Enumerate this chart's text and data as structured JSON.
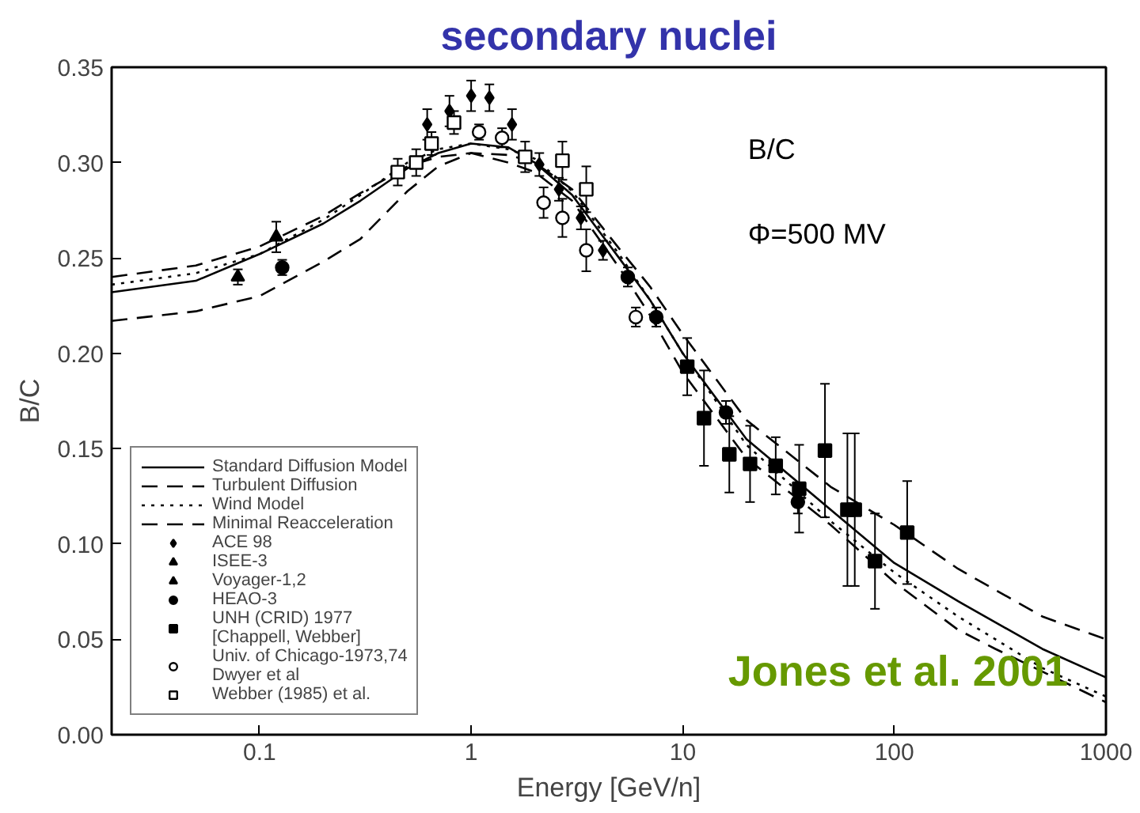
{
  "chart_data": {
    "type": "scatter",
    "title": "secondary nuclei",
    "xlabel": "Energy [GeV/n]",
    "ylabel": "B/C",
    "log": "x",
    "xlim": [
      0.02,
      1000
    ],
    "ylim": [
      0,
      0.35
    ],
    "xticks": [
      0.1,
      1,
      10,
      100,
      1000
    ],
    "yticks": [
      {
        "value": 0,
        "label": "0.00"
      },
      0.05,
      {
        "value": 0.1,
        "label": "0.10"
      },
      0.15,
      {
        "value": 0.2,
        "label": "0.20"
      },
      0.25,
      {
        "value": 0.3,
        "label": "0.30"
      },
      0.35
    ],
    "grid": false,
    "legend": "bottom left",
    "annotations": [
      "B/C",
      "Φ=500 MV",
      "Jones et al. 2001"
    ],
    "series": [
      {
        "name": "Standard Diffusion Model",
        "type": "line",
        "line_style": "solid",
        "color": "#000000",
        "x": [
          0.02,
          0.05,
          0.1,
          0.2,
          0.3,
          0.5,
          0.7,
          1,
          1.5,
          2,
          3,
          5,
          7,
          10,
          20,
          50,
          100,
          200,
          500,
          1000
        ],
        "values": [
          0.232,
          0.238,
          0.252,
          0.268,
          0.28,
          0.297,
          0.305,
          0.31,
          0.308,
          0.3,
          0.283,
          0.25,
          0.228,
          0.2,
          0.155,
          0.118,
          0.09,
          0.07,
          0.045,
          0.03
        ]
      },
      {
        "name": "Turbulent Diffusion",
        "type": "line",
        "line_style": "dashed",
        "color": "#000000",
        "x": [
          0.02,
          0.05,
          0.1,
          0.2,
          0.3,
          0.5,
          0.7,
          1,
          1.5,
          2,
          3,
          5,
          7,
          10,
          20,
          50,
          100,
          200,
          500,
          1000
        ],
        "values": [
          0.24,
          0.246,
          0.256,
          0.272,
          0.284,
          0.298,
          0.303,
          0.305,
          0.304,
          0.3,
          0.286,
          0.255,
          0.235,
          0.21,
          0.165,
          0.13,
          0.11,
          0.087,
          0.062,
          0.05
        ]
      },
      {
        "name": "Wind Model",
        "type": "line",
        "line_style": "dotted",
        "color": "#000000",
        "x": [
          0.02,
          0.05,
          0.1,
          0.2,
          0.3,
          0.5,
          0.7,
          1,
          1.5,
          2,
          3,
          5,
          7,
          10,
          20,
          50,
          100,
          200,
          500,
          1000
        ],
        "values": [
          0.236,
          0.242,
          0.252,
          0.27,
          0.283,
          0.3,
          0.307,
          0.31,
          0.307,
          0.302,
          0.285,
          0.252,
          0.228,
          0.2,
          0.152,
          0.112,
          0.085,
          0.062,
          0.035,
          0.02
        ]
      },
      {
        "name": "Minimal Reacceleration",
        "type": "line",
        "line_style": "dashed",
        "color": "#000000",
        "x": [
          0.02,
          0.05,
          0.1,
          0.2,
          0.3,
          0.5,
          0.7,
          1,
          1.5,
          2,
          3,
          5,
          7,
          10,
          20,
          50,
          100,
          200,
          300,
          1000
        ],
        "values": [
          0.217,
          0.222,
          0.23,
          0.248,
          0.26,
          0.285,
          0.298,
          0.305,
          0.3,
          0.295,
          0.28,
          0.245,
          0.22,
          0.19,
          0.145,
          0.11,
          0.08,
          0.055,
          0.045,
          0.017
        ]
      },
      {
        "name": "ACE 98",
        "marker": "diamond",
        "color": "#000000",
        "x": [
          0.62,
          0.79,
          1.0,
          1.22,
          1.56,
          2.1,
          2.6,
          3.3,
          4.2
        ],
        "values": [
          0.32,
          0.327,
          0.335,
          0.334,
          0.32,
          0.299,
          0.286,
          0.271,
          0.254
        ],
        "errors": [
          0.008,
          0.008,
          0.008,
          0.007,
          0.008,
          0.006,
          0.006,
          0.006,
          0.005
        ]
      },
      {
        "name": "ISEE-3",
        "marker": "triangle",
        "color": "#000000",
        "x": [
          0.12
        ],
        "values": [
          0.261
        ],
        "errors": [
          0.008
        ]
      },
      {
        "name": "Voyager-1,2",
        "marker": "triangle",
        "color": "#000000",
        "x": [
          0.079
        ],
        "values": [
          0.24
        ],
        "errors": [
          0.004
        ]
      },
      {
        "name": "HEAO-3",
        "marker": "circle",
        "color": "#000000",
        "x": [
          0.128,
          5.5,
          7.5,
          16,
          35
        ],
        "values": [
          0.245,
          0.24,
          0.219,
          0.169,
          0.122
        ],
        "errors": [
          0.004,
          0.005,
          0.005,
          0.006,
          0.006
        ]
      },
      {
        "name": "UNH (CRID) 1977\n[Chappell, Webber]",
        "marker": "square",
        "color": "#000000",
        "x": [
          10.5,
          12.6,
          16.6,
          20.8,
          27.5,
          35.5,
          47,
          60,
          65,
          81,
          115
        ],
        "values": [
          0.193,
          0.166,
          0.147,
          0.142,
          0.141,
          0.129,
          0.149,
          0.118,
          0.118,
          0.091,
          0.106
        ],
        "errors": [
          0.015,
          0.025,
          0.02,
          0.02,
          0.015,
          0.023,
          0.035,
          0.04,
          0.04,
          0.025,
          0.027
        ]
      },
      {
        "name": "Univ. of Chicago-1973,74\nDwyer et al",
        "marker": "circle",
        "color": "#ffffff",
        "x": [
          1.09,
          1.4,
          2.2,
          2.7,
          3.5,
          6.0
        ],
        "values": [
          0.316,
          0.313,
          0.279,
          0.271,
          0.254,
          0.219
        ],
        "errors": [
          0.004,
          0.005,
          0.008,
          0.01,
          0.011,
          0.005
        ]
      },
      {
        "name": "Webber (1985) et al.",
        "marker": "square",
        "color": "#ffffff",
        "x": [
          0.45,
          0.55,
          0.65,
          0.83,
          1.8,
          2.7,
          3.5
        ],
        "values": [
          0.295,
          0.3,
          0.31,
          0.321,
          0.303,
          0.301,
          0.286
        ],
        "errors": [
          0.007,
          0.007,
          0.006,
          0.006,
          0.008,
          0.01,
          0.012
        ]
      }
    ]
  }
}
